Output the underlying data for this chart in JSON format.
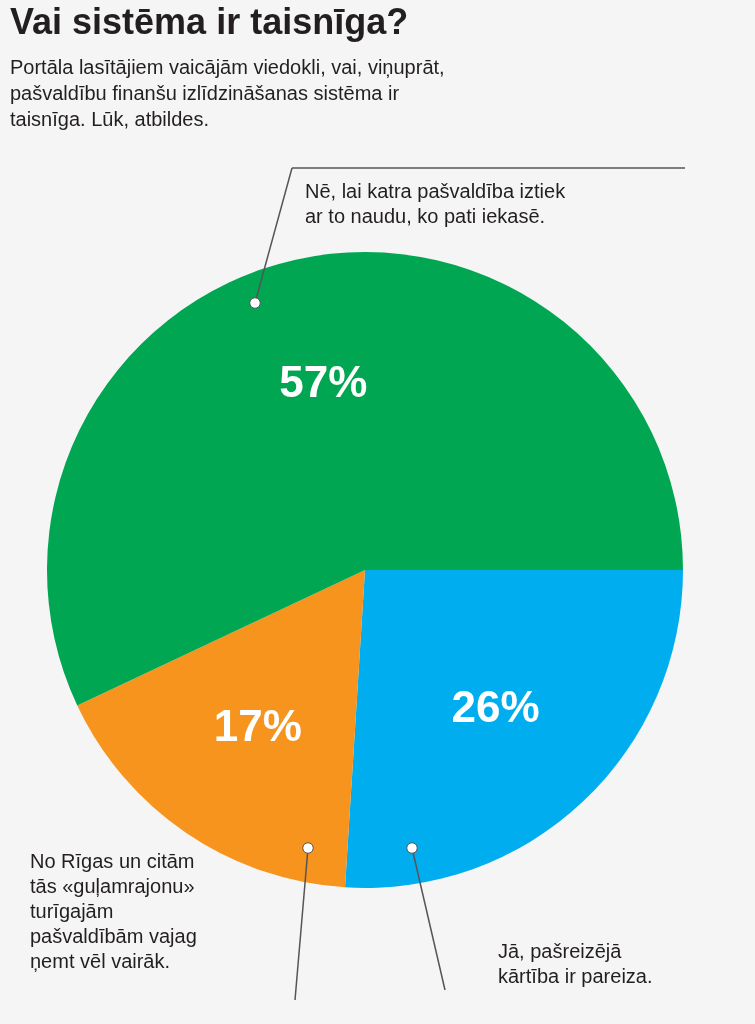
{
  "chart_data": {
    "type": "pie",
    "title": "Vai sistēma ir taisnīga?",
    "subtitle": "Portāla lasītājiem vaicājām viedokli, vai, viņuprāt, pašvaldību finanšu izlīdzināšanas sistēma ir taisnīga. Lūk, atbildes.",
    "categories": [
      "Jā, pašreizējā kārtība ir pareiza.",
      "No Rīgas un citām tās «guļamrajonu» turīgajām pašvaldībām vajag ņemt vēl vairāk.",
      "Nē, lai katra pašvaldība iztiek ar to naudu, ko pati iekasē."
    ],
    "values": [
      26,
      17,
      57
    ],
    "value_labels": [
      "26%",
      "17%",
      "57%"
    ],
    "colors": [
      "#00aeef",
      "#f7941d",
      "#00a651"
    ]
  }
}
